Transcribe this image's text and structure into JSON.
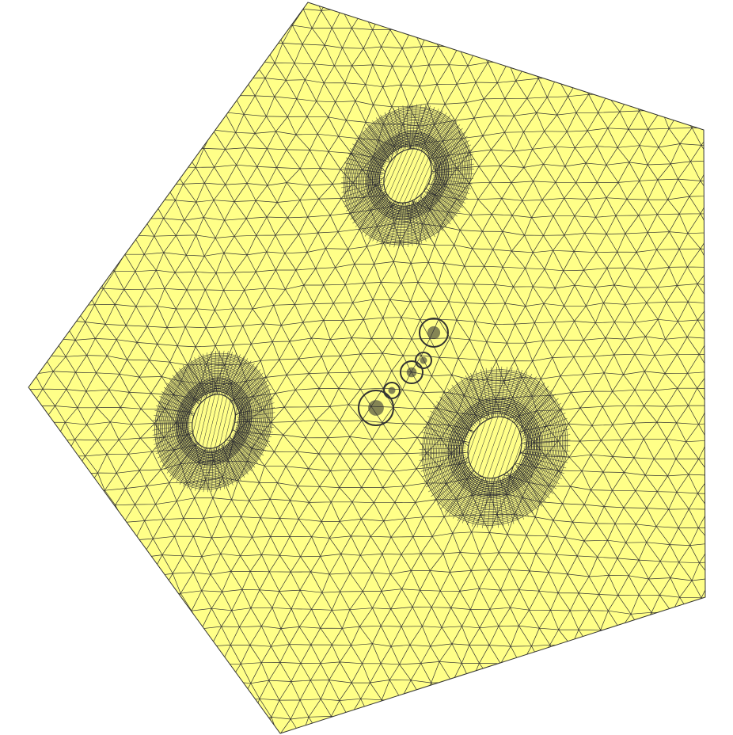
{
  "colors": {
    "fill": "#ffff88",
    "edge": "#333333",
    "dense": "#333333",
    "background": "#ffffff"
  },
  "mesh": {
    "shape": "pentagon",
    "element_type": "triangle",
    "holes": [
      "hole-top",
      "hole-left",
      "hole-bottom-right"
    ]
  }
}
